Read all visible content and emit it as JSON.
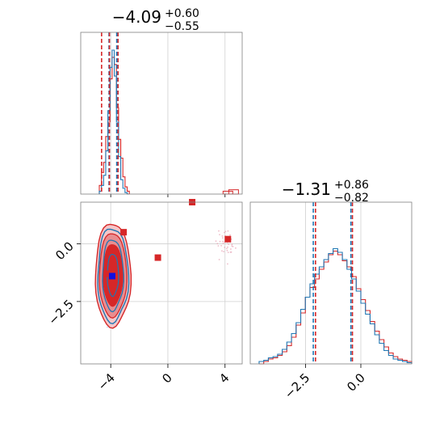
{
  "chart_data": {
    "type": "corner",
    "colors": {
      "red": "#d62728",
      "blue": "#1f77b4",
      "grid": "#d0d0d0",
      "frame": "#808080"
    },
    "param1": {
      "title_main": "−4.09",
      "title_sup": "+0.60",
      "title_sub": "−0.55",
      "median": -4.09,
      "plus": 0.6,
      "minus": 0.55,
      "xlim": [
        -6.1,
        5.2
      ],
      "ticks": [
        -4,
        0,
        4
      ],
      "tick_labels": [
        "−4",
        "0",
        "4"
      ]
    },
    "param2": {
      "title_main": "−1.31",
      "title_sup": "+0.86",
      "title_sub": "−0.82",
      "median": -1.31,
      "plus": 0.86,
      "minus": 0.82,
      "xlim": [
        -5.0,
        2.3
      ],
      "ticks": [
        -2.5,
        0.0
      ],
      "tick_labels": [
        "−2.5",
        "0.0"
      ]
    },
    "hist1": {
      "bins": [
        -4.8,
        -4.65,
        -4.5,
        -4.35,
        -4.2,
        -4.05,
        -3.9,
        -3.75,
        -3.6,
        -3.45,
        -3.3,
        -3.15,
        -3.0,
        -2.85
      ],
      "blue": [
        0.02,
        0.06,
        0.13,
        0.3,
        0.58,
        0.88,
        1.0,
        0.82,
        0.5,
        0.26,
        0.1,
        0.04,
        0.01,
        0.0
      ],
      "red": [
        0.06,
        0.15,
        0.22,
        0.4,
        0.5,
        0.8,
        0.95,
        0.9,
        0.6,
        0.38,
        0.25,
        0.12,
        0.05,
        0.02
      ],
      "red_outliers": [
        [
          4.2,
          0.02
        ],
        [
          4.6,
          0.03
        ]
      ],
      "blue_quantiles": [
        -4.12,
        -3.58
      ],
      "red_quantiles": [
        -4.64,
        -3.49
      ]
    },
    "hist2": {
      "blue": [
        0.02,
        0.03,
        0.05,
        0.06,
        0.08,
        0.12,
        0.18,
        0.25,
        0.34,
        0.45,
        0.55,
        0.66,
        0.74,
        0.8,
        0.86,
        0.91,
        0.95,
        0.92,
        0.86,
        0.78,
        0.7,
        0.6,
        0.5,
        0.41,
        0.33,
        0.24,
        0.17,
        0.11,
        0.07,
        0.04,
        0.03,
        0.02,
        0.01
      ],
      "red": [
        0.0,
        0.02,
        0.04,
        0.05,
        0.07,
        0.1,
        0.15,
        0.22,
        0.32,
        0.42,
        0.55,
        0.63,
        0.7,
        0.78,
        0.84,
        0.9,
        0.93,
        0.9,
        0.85,
        0.8,
        0.72,
        0.62,
        0.53,
        0.44,
        0.35,
        0.27,
        0.2,
        0.14,
        0.09,
        0.06,
        0.04,
        0.03,
        0.02
      ],
      "blue_quantiles": [
        -2.15,
        -0.45
      ],
      "red_quantiles": [
        -2.05,
        -0.38
      ]
    },
    "scatter": {
      "ylim": [
        -5.2,
        1.8
      ],
      "yticks": [
        0.0,
        -2.5
      ],
      "ytick_labels": [
        "0.0",
        "−2.5"
      ],
      "red_markers": [
        [
          -3.1,
          0.5
        ],
        [
          -0.7,
          -0.6
        ],
        [
          4.2,
          0.2
        ],
        [
          1.7,
          1.8
        ],
        [
          -4.3,
          -1.3
        ]
      ],
      "blue_marker": [
        -3.9,
        -1.4
      ]
    }
  }
}
